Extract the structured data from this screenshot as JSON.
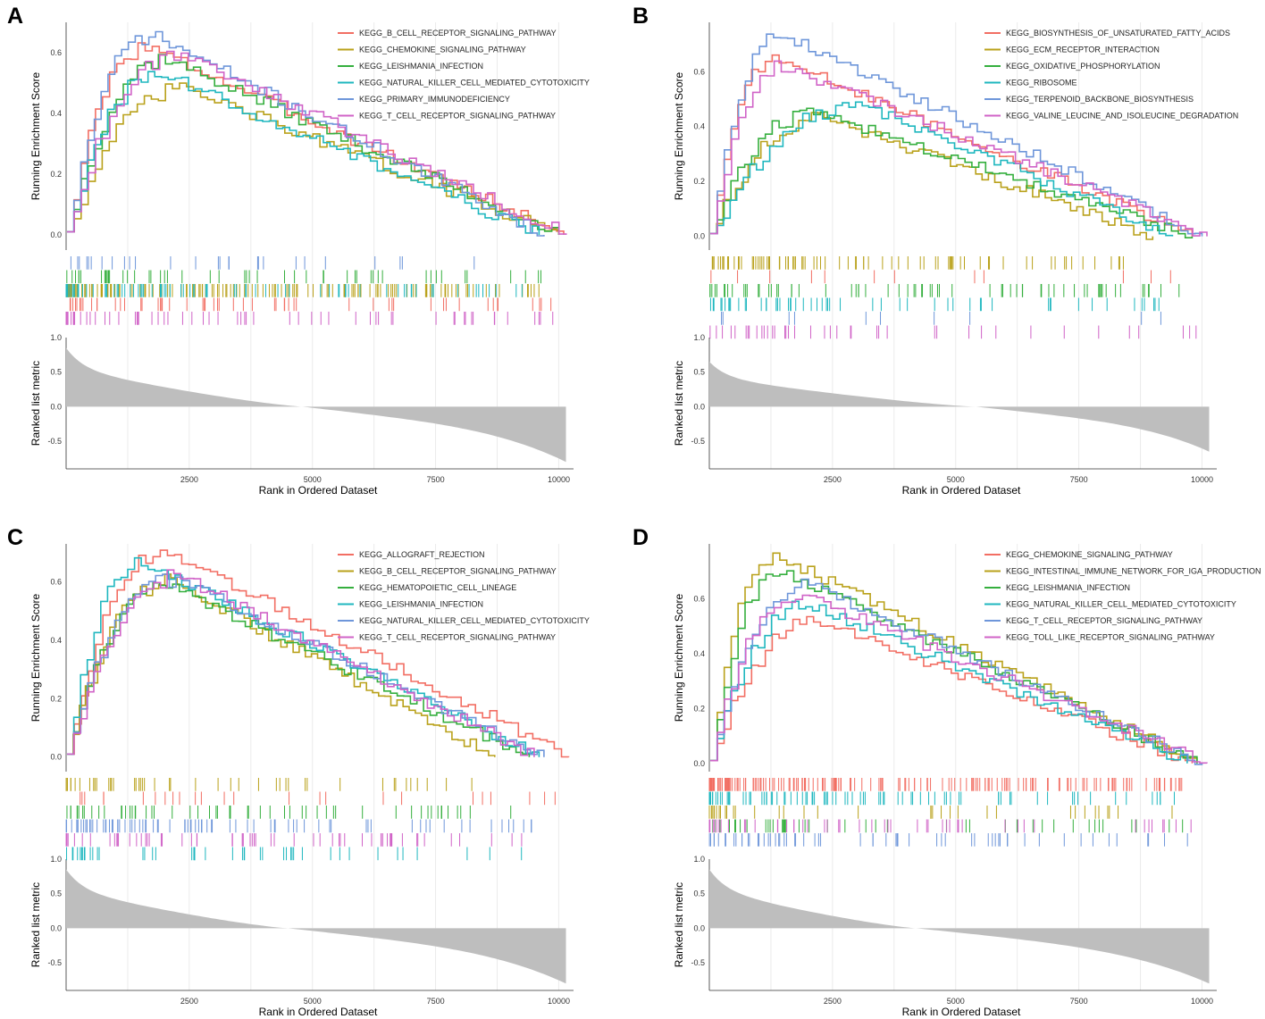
{
  "figure": {
    "colors": [
      "#F26E63",
      "#B9A11A",
      "#35AF3E",
      "#1FB7BF",
      "#6E96DA",
      "#D063C7"
    ],
    "metric_color": "#BEBEBE",
    "grid_color": "#EBEBEB"
  },
  "chart_data": [
    {
      "panel": "A",
      "type": "line",
      "ylabel_top": "Running Enrichment Score",
      "ylabel_bottom": "Ranked list metric",
      "xlabel": "Rank in Ordered Dataset",
      "xlim": [
        0,
        10300
      ],
      "xticks": [
        2500,
        5000,
        7500,
        10000
      ],
      "es_ylim": [
        -0.05,
        0.7
      ],
      "es_yticks": [
        0.0,
        0.2,
        0.4,
        0.6
      ],
      "metric_ylim": [
        -0.9,
        1.0
      ],
      "metric_yticks": [
        1.0,
        0.5,
        0.0,
        -0.5
      ],
      "metric_max": 0.85,
      "metric_min": -0.8,
      "metric_zero_rank": 4800,
      "legend": "top-right",
      "series": [
        {
          "name": "KEGG_B_CELL_RECEPTOR_SIGNALING_PATHWAY",
          "peak_rank": 1600,
          "peak_es": 0.62,
          "end_rank": 10100,
          "hit_row": 3,
          "n_hits": 55
        },
        {
          "name": "KEGG_CHEMOKINE_SIGNALING_PATHWAY",
          "peak_rank": 2400,
          "peak_es": 0.48,
          "end_rank": 10000,
          "hit_row": 2,
          "n_hits": 150
        },
        {
          "name": "KEGG_LEISHMANIA_INFECTION",
          "peak_rank": 2000,
          "peak_es": 0.58,
          "end_rank": 10000,
          "hit_row": 1,
          "n_hits": 50
        },
        {
          "name": "KEGG_NATURAL_KILLER_CELL_MEDIATED_CYTOTOXICITY",
          "peak_rank": 1900,
          "peak_es": 0.53,
          "end_rank": 9600,
          "hit_row": 2,
          "n_hits": 80
        },
        {
          "name": "KEGG_PRIMARY_IMMUNODEFICIENCY",
          "peak_rank": 1700,
          "peak_es": 0.66,
          "end_rank": 9700,
          "hit_row": 0,
          "n_hits": 28
        },
        {
          "name": "KEGG_T_CELL_RECEPTOR_SIGNALING_PATHWAY",
          "peak_rank": 2300,
          "peak_es": 0.6,
          "end_rank": 10150,
          "hit_row": 4,
          "n_hits": 60
        }
      ]
    },
    {
      "panel": "B",
      "type": "line",
      "ylabel_top": "Running Enrichment Score",
      "ylabel_bottom": "Ranked list metric",
      "xlabel": "Rank in Ordered Dataset",
      "xlim": [
        0,
        10300
      ],
      "xticks": [
        2500,
        5000,
        7500,
        10000
      ],
      "es_ylim": [
        -0.05,
        0.78
      ],
      "es_yticks": [
        0.0,
        0.2,
        0.4,
        0.6
      ],
      "metric_ylim": [
        -0.9,
        1.0
      ],
      "metric_yticks": [
        1.0,
        0.5,
        0.0,
        -0.5
      ],
      "metric_max": 0.65,
      "metric_min": -0.65,
      "metric_zero_rank": 5400,
      "legend": "top-right",
      "series": [
        {
          "name": "KEGG_BIOSYNTHESIS_OF_UNSATURATED_FATTY_ACIDS",
          "peak_rank": 1300,
          "peak_es": 0.65,
          "end_rank": 9800,
          "hit_row": 1,
          "n_hits": 12
        },
        {
          "name": "KEGG_ECM_RECEPTOR_INTERACTION",
          "peak_rank": 2300,
          "peak_es": 0.43,
          "end_rank": 9000,
          "hit_row": 0,
          "n_hits": 80
        },
        {
          "name": "KEGG_OXIDATIVE_PHOSPHORYLATION",
          "peak_rank": 2100,
          "peak_es": 0.45,
          "end_rank": 9800,
          "hit_row": 2,
          "n_hits": 70
        },
        {
          "name": "KEGG_RIBOSOME",
          "peak_rank": 3100,
          "peak_es": 0.48,
          "end_rank": 9400,
          "hit_row": 3,
          "n_hits": 55
        },
        {
          "name": "KEGG_TERPENOID_BACKBONE_BIOSYNTHESIS",
          "peak_rank": 1400,
          "peak_es": 0.74,
          "end_rank": 10000,
          "hit_row": 4,
          "n_hits": 10
        },
        {
          "name": "KEGG_VALINE_LEUCINE_AND_ISOLEUCINE_DEGRADATION",
          "peak_rank": 1500,
          "peak_es": 0.62,
          "end_rank": 10100,
          "hit_row": 5,
          "n_hits": 40
        }
      ]
    },
    {
      "panel": "C",
      "type": "line",
      "ylabel_top": "Running Enrichment Score",
      "ylabel_bottom": "Ranked list metric",
      "xlabel": "Rank in Ordered Dataset",
      "xlim": [
        0,
        10300
      ],
      "xticks": [
        2500,
        5000,
        7500,
        10000
      ],
      "es_ylim": [
        -0.05,
        0.73
      ],
      "es_yticks": [
        0.0,
        0.2,
        0.4,
        0.6
      ],
      "metric_ylim": [
        -0.9,
        1.0
      ],
      "metric_yticks": [
        1.0,
        0.5,
        0.0,
        -0.5
      ],
      "metric_max": 0.85,
      "metric_min": -0.8,
      "metric_zero_rank": 4500,
      "legend": "top-right",
      "series": [
        {
          "name": "KEGG_ALLOGRAFT_REJECTION",
          "peak_rank": 2000,
          "peak_es": 0.71,
          "end_rank": 10200,
          "hit_row": 1,
          "n_hits": 25
        },
        {
          "name": "KEGG_B_CELL_RECEPTOR_SIGNALING_PATHWAY",
          "peak_rank": 2100,
          "peak_es": 0.6,
          "end_rank": 8700,
          "hit_row": 0,
          "n_hits": 45
        },
        {
          "name": "KEGG_HEMATOPOIETIC_CELL_LINEAGE",
          "peak_rank": 2000,
          "peak_es": 0.59,
          "end_rank": 9400,
          "hit_row": 2,
          "n_hits": 55
        },
        {
          "name": "KEGG_LEISHMANIA_INFECTION",
          "peak_rank": 1500,
          "peak_es": 0.67,
          "end_rank": 9600,
          "hit_row": 5,
          "n_hits": 45
        },
        {
          "name": "KEGG_NATURAL_KILLER_CELL_MEDIATED_CYTOTOXICITY",
          "peak_rank": 2200,
          "peak_es": 0.61,
          "end_rank": 9700,
          "hit_row": 3,
          "n_hits": 80
        },
        {
          "name": "KEGG_T_CELL_RECEPTOR_SIGNALING_PATHWAY",
          "peak_rank": 2300,
          "peak_es": 0.62,
          "end_rank": 9500,
          "hit_row": 4,
          "n_hits": 60
        }
      ]
    },
    {
      "panel": "D",
      "type": "line",
      "ylabel_top": "Running Enrichment Score",
      "ylabel_bottom": "Ranked list metric",
      "xlabel": "Rank in Ordered Dataset",
      "xlim": [
        0,
        10300
      ],
      "xticks": [
        2500,
        5000,
        7500,
        10000
      ],
      "es_ylim": [
        -0.03,
        0.8
      ],
      "es_yticks": [
        0.0,
        0.2,
        0.4,
        0.6
      ],
      "metric_ylim": [
        -0.9,
        1.0
      ],
      "metric_yticks": [
        1.0,
        0.5,
        0.0,
        -0.5
      ],
      "metric_max": 0.85,
      "metric_min": -0.8,
      "metric_zero_rank": 4200,
      "legend": "top-right",
      "series": [
        {
          "name": "KEGG_CHEMOKINE_SIGNALING_PATHWAY",
          "peak_rank": 2200,
          "peak_es": 0.52,
          "end_rank": 9800,
          "hit_row": 0,
          "n_hits": 170
        },
        {
          "name": "KEGG_INTESTINAL_IMMUNE_NETWORK_FOR_IGA_PRODUCTION",
          "peak_rank": 1300,
          "peak_es": 0.76,
          "end_rank": 9900,
          "hit_row": 2,
          "n_hits": 35
        },
        {
          "name": "KEGG_LEISHMANIA_INFECTION",
          "peak_rank": 1400,
          "peak_es": 0.7,
          "end_rank": 9900,
          "hit_row": 3,
          "n_hits": 45
        },
        {
          "name": "KEGG_NATURAL_KILLER_CELL_MEDIATED_CYTOTOXICITY",
          "peak_rank": 2000,
          "peak_es": 0.58,
          "end_rank": 9700,
          "hit_row": 1,
          "n_hits": 80
        },
        {
          "name": "KEGG_T_CELL_RECEPTOR_SIGNALING_PATHWAY",
          "peak_rank": 2000,
          "peak_es": 0.65,
          "end_rank": 10000,
          "hit_row": 4,
          "n_hits": 60
        },
        {
          "name": "KEGG_TOLL_LIKE_RECEPTOR_SIGNALING_PATHWAY",
          "peak_rank": 1800,
          "peak_es": 0.62,
          "end_rank": 10100,
          "hit_row": 3,
          "n_hits": 50
        }
      ]
    }
  ]
}
